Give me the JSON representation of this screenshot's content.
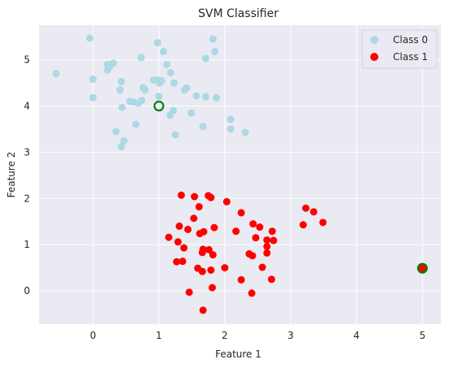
{
  "chart_data": {
    "type": "scatter",
    "title": "SVM Classifier",
    "xlabel": "Feature 1",
    "ylabel": "Feature 2",
    "xlim": [
      -0.82,
      5.28
    ],
    "ylim": [
      -0.72,
      5.75
    ],
    "xticks": [
      0,
      1,
      2,
      3,
      4,
      5
    ],
    "yticks": [
      0,
      1,
      2,
      3,
      4,
      5
    ],
    "grid": true,
    "legend_position": "top-right",
    "colors": {
      "background": "#eaeaf2",
      "grid": "#ffffff",
      "class0": "#add8e6",
      "class1": "#ff0000",
      "support_vector": "#008000"
    },
    "series": [
      {
        "name": "Class 0",
        "points": [
          [
            -0.05,
            5.47
          ],
          [
            0.98,
            5.37
          ],
          [
            1.82,
            5.45
          ],
          [
            1.07,
            5.18
          ],
          [
            1.85,
            5.18
          ],
          [
            0.73,
            5.05
          ],
          [
            1.71,
            5.03
          ],
          [
            0.22,
            4.9
          ],
          [
            0.25,
            4.85
          ],
          [
            0.31,
            4.93
          ],
          [
            1.12,
            4.9
          ],
          [
            0.22,
            4.78
          ],
          [
            1.18,
            4.72
          ],
          [
            -0.56,
            4.7
          ],
          [
            0.0,
            4.58
          ],
          [
            0.43,
            4.53
          ],
          [
            0.92,
            4.56
          ],
          [
            0.98,
            4.56
          ],
          [
            1.04,
            4.55
          ],
          [
            1.01,
            4.5
          ],
          [
            1.23,
            4.5
          ],
          [
            0.76,
            4.4
          ],
          [
            0.79,
            4.35
          ],
          [
            1.42,
            4.39
          ],
          [
            1.39,
            4.35
          ],
          [
            0.41,
            4.35
          ],
          [
            1.57,
            4.22
          ],
          [
            1.71,
            4.2
          ],
          [
            1.87,
            4.18
          ],
          [
            0.0,
            4.18
          ],
          [
            0.56,
            4.1
          ],
          [
            0.62,
            4.08
          ],
          [
            0.69,
            4.06
          ],
          [
            0.74,
            4.12
          ],
          [
            0.44,
            3.97
          ],
          [
            1.22,
            3.9
          ],
          [
            1.17,
            3.8
          ],
          [
            1.49,
            3.85
          ],
          [
            0.65,
            3.6
          ],
          [
            1.67,
            3.56
          ],
          [
            2.09,
            3.71
          ],
          [
            2.09,
            3.5
          ],
          [
            0.35,
            3.45
          ],
          [
            1.25,
            3.38
          ],
          [
            2.31,
            3.43
          ],
          [
            0.47,
            3.25
          ],
          [
            0.43,
            3.12
          ],
          [
            1.0,
            4.21
          ]
        ]
      },
      {
        "name": "Class 1",
        "points": [
          [
            1.34,
            2.07
          ],
          [
            1.54,
            2.04
          ],
          [
            1.75,
            2.06
          ],
          [
            1.79,
            2.02
          ],
          [
            2.03,
            1.93
          ],
          [
            1.61,
            1.82
          ],
          [
            2.25,
            1.69
          ],
          [
            3.23,
            1.79
          ],
          [
            3.35,
            1.71
          ],
          [
            1.53,
            1.57
          ],
          [
            2.43,
            1.45
          ],
          [
            2.53,
            1.38
          ],
          [
            3.19,
            1.43
          ],
          [
            3.49,
            1.48
          ],
          [
            1.31,
            1.4
          ],
          [
            1.44,
            1.33
          ],
          [
            1.84,
            1.37
          ],
          [
            2.17,
            1.29
          ],
          [
            2.72,
            1.29
          ],
          [
            1.62,
            1.24
          ],
          [
            1.68,
            1.28
          ],
          [
            1.15,
            1.16
          ],
          [
            1.29,
            1.06
          ],
          [
            2.47,
            1.15
          ],
          [
            2.64,
            1.1
          ],
          [
            2.74,
            1.09
          ],
          [
            1.38,
            0.93
          ],
          [
            1.67,
            0.9
          ],
          [
            1.76,
            0.89
          ],
          [
            2.64,
            0.96
          ],
          [
            1.66,
            0.83
          ],
          [
            1.82,
            0.78
          ],
          [
            2.37,
            0.8
          ],
          [
            2.42,
            0.76
          ],
          [
            2.64,
            0.82
          ],
          [
            1.27,
            0.63
          ],
          [
            1.36,
            0.64
          ],
          [
            1.59,
            0.49
          ],
          [
            1.66,
            0.42
          ],
          [
            1.79,
            0.45
          ],
          [
            2.0,
            0.5
          ],
          [
            2.57,
            0.51
          ],
          [
            2.25,
            0.24
          ],
          [
            2.71,
            0.25
          ],
          [
            1.81,
            0.07
          ],
          [
            1.46,
            -0.03
          ],
          [
            2.41,
            -0.05
          ],
          [
            1.67,
            -0.42
          ],
          [
            5.0,
            0.49
          ]
        ]
      }
    ],
    "support_vectors": [
      [
        1.0,
        4.0
      ],
      [
        5.0,
        0.49
      ]
    ]
  }
}
